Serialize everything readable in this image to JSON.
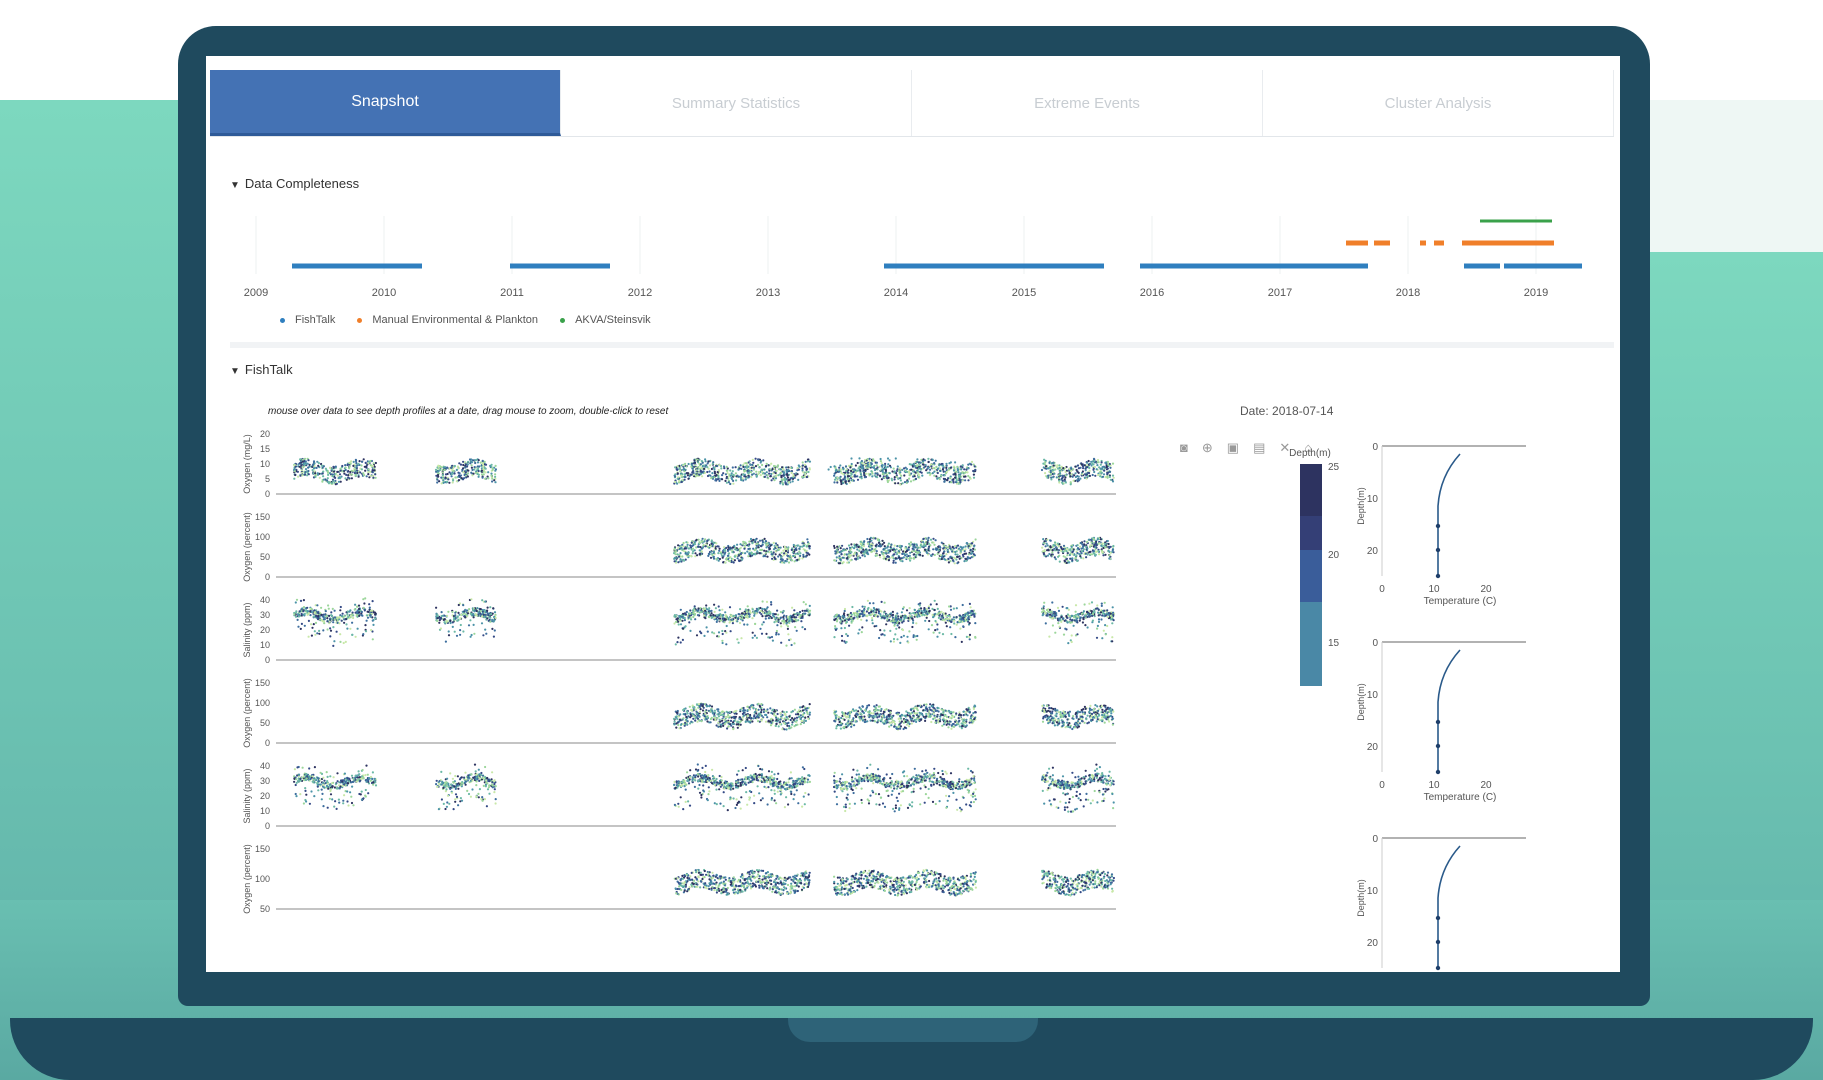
{
  "tabs": [
    "Snapshot",
    "Summary Statistics",
    "Extreme Events",
    "Cluster Analysis"
  ],
  "sections": {
    "completeness_title": "Data Completeness",
    "fishtalk_title": "FishTalk"
  },
  "completeness": {
    "years": [
      "2009",
      "2010",
      "2011",
      "2012",
      "2013",
      "2014",
      "2015",
      "2016",
      "2017",
      "2018",
      "2019"
    ],
    "legend": [
      {
        "label": "FishTalk",
        "color": "#2f7fbf"
      },
      {
        "label": "Manual Environmental & Plankton",
        "color": "#f07f2a"
      },
      {
        "label": "AKVA/Steinsvik",
        "color": "#3aa14a"
      }
    ]
  },
  "fishtalk": {
    "hint": "mouse over data to see depth profiles at a date, drag mouse to zoom, double-click to reset",
    "date_label": "Date: 2018-07-14",
    "colorbar_title": "Depth(m)",
    "colorbar_ticks": [
      "25",
      "20",
      "15"
    ],
    "plots": [
      {
        "ylabel": "Oxygen (mg/L)",
        "ticks": [
          "20",
          "15",
          "10",
          "5",
          "0"
        ]
      },
      {
        "ylabel": "Oxygen (percent)",
        "ticks": [
          "150",
          "100",
          "50",
          "0"
        ]
      },
      {
        "ylabel": "Salinity (ppm)",
        "ticks": [
          "40",
          "30",
          "20",
          "10",
          "0"
        ]
      },
      {
        "ylabel": "Oxygen (percent)",
        "ticks": [
          "150",
          "100",
          "50",
          "0"
        ]
      },
      {
        "ylabel": "Salinity (ppm)",
        "ticks": [
          "40",
          "30",
          "20",
          "10",
          "0"
        ]
      },
      {
        "ylabel": "Oxygen (percent)",
        "ticks": [
          "150",
          "100",
          "50"
        ]
      }
    ],
    "profiles": [
      {
        "xlabel": "Temperature (C)",
        "ylabel": "Depth(m)",
        "yticks": [
          "0",
          "10",
          "20"
        ],
        "xticks": [
          "0",
          "10",
          "20"
        ]
      },
      {
        "xlabel": "Temperature (C)",
        "ylabel": "Depth(m)",
        "yticks": [
          "0",
          "10",
          "20"
        ],
        "xticks": [
          "0",
          "10",
          "20"
        ]
      },
      {
        "xlabel": "",
        "ylabel": "Depth(m)",
        "yticks": [
          "0",
          "10",
          "20"
        ],
        "xticks": []
      }
    ]
  },
  "icons": [
    "camera-icon",
    "zoom-icon",
    "pan-icon",
    "box-select-icon",
    "lasso-icon",
    "reset-icon"
  ]
}
